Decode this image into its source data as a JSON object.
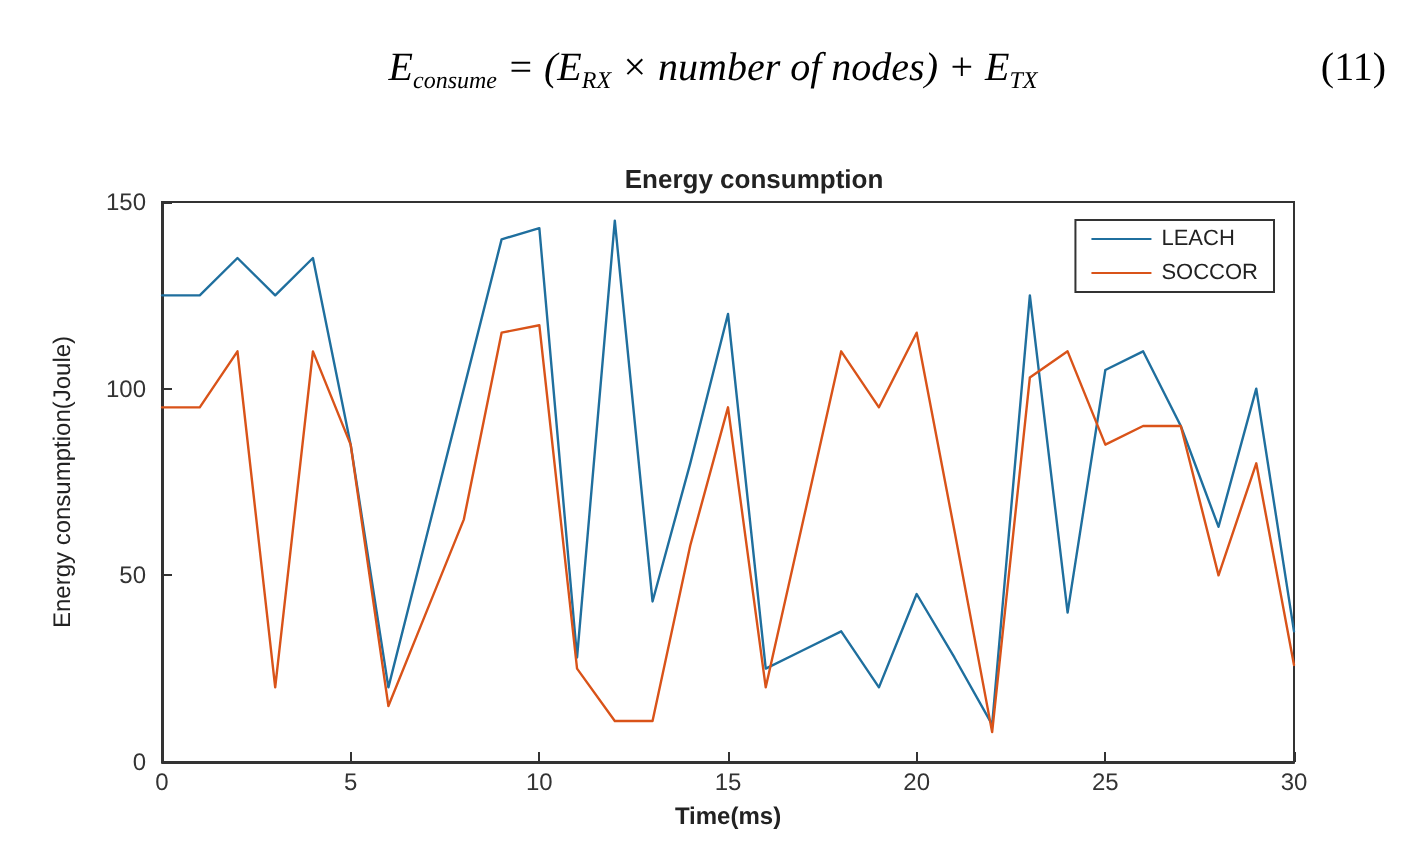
{
  "chart_data": {
    "type": "line",
    "title": "Energy consumption",
    "xlabel": "Time(ms)",
    "ylabel": "Energy consumption(Joule)",
    "annotations": [
      "E$_{consume}$ = (E$_{RX}$ × number of nodes) + E$_{TX}$",
      "(11)"
    ],
    "x": [
      0,
      1,
      2,
      3,
      4,
      5,
      6,
      7,
      8,
      9,
      10,
      11,
      12,
      13,
      14,
      15,
      16,
      17,
      18,
      19,
      20,
      21,
      22,
      23,
      24,
      25,
      26,
      27,
      28,
      29,
      30
    ],
    "series": [
      {
        "name": "LEACH",
        "color": "#1f6f9e",
        "values": [
          125,
          125,
          135,
          125,
          135,
          85,
          20,
          60,
          100,
          140,
          143,
          28,
          145,
          43,
          80,
          120,
          25,
          30,
          35,
          20,
          45,
          28,
          10,
          125,
          40,
          105,
          110,
          90,
          63,
          100,
          35
        ]
      },
      {
        "name": "SOCCOR",
        "color": "#d95319",
        "values": [
          95,
          95,
          110,
          20,
          110,
          85,
          15,
          40,
          65,
          115,
          117,
          25,
          11,
          11,
          58,
          95,
          20,
          65,
          110,
          95,
          115,
          62,
          8,
          103,
          110,
          85,
          90,
          90,
          50,
          80,
          26
        ]
      }
    ],
    "xlim": [
      0,
      30
    ],
    "xticks": [
      0,
      5,
      10,
      15,
      20,
      25,
      30
    ],
    "ylim": [
      0,
      150
    ],
    "yticks": [
      0,
      50,
      100,
      150
    ],
    "grid": false,
    "legend": "top right",
    "marker": "none",
    "line_style": "solid"
  }
}
